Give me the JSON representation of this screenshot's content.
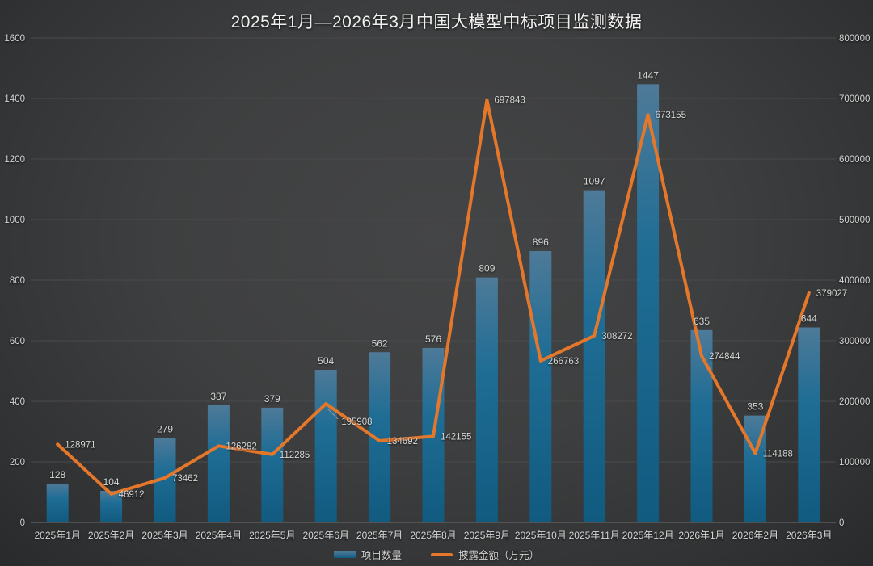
{
  "title": "2025年1月—2026年3月中国大模型中标项目监测数据",
  "legend": {
    "bar_label": "项目数量",
    "line_label": "披露金额（万元）"
  },
  "colors": {
    "background_center": "#434445",
    "background_edge": "#2a2b2c",
    "gridline": "#4a4a4b",
    "axis_line": "#6f6f6f",
    "label_text": "#d6d6d6",
    "title_text": "#f0f0f0",
    "bar_top": "#4e7a98",
    "bar_mid": "#1f6d95",
    "bar_bottom": "#115a80",
    "line_orange": "#e5772b",
    "leader_line": "#9a9a9a"
  },
  "chart_data": {
    "type": "bar",
    "combo": "bar+line dual axis",
    "title": "2025年1月—2026年3月中国大模型中标项目监测数据",
    "categories": [
      "2025年1月",
      "2025年2月",
      "2025年3月",
      "2025年4月",
      "2025年5月",
      "2025年6月",
      "2025年7月",
      "2025年8月",
      "2025年9月",
      "2025年10月",
      "2025年11月",
      "2025年12月",
      "2026年1月",
      "2026年2月",
      "2026年3月"
    ],
    "series": [
      {
        "name": "项目数量",
        "type": "bar",
        "axis": "left",
        "values": [
          128,
          104,
          279,
          387,
          379,
          504,
          562,
          576,
          809,
          896,
          1097,
          1447,
          635,
          353,
          644
        ]
      },
      {
        "name": "披露金额（万元）",
        "type": "line",
        "axis": "right",
        "values": [
          128971,
          46912,
          73462,
          126282,
          112285,
          195908,
          134692,
          142155,
          697843,
          266763,
          308272,
          673155,
          274844,
          114188,
          379027
        ]
      }
    ],
    "left_axis": {
      "min": 0,
      "max": 1600,
      "step": 200
    },
    "right_axis": {
      "min": 0,
      "max": 800000,
      "step": 100000
    },
    "grid": true,
    "data_labels": true,
    "label_callout_index": 5,
    "legend_position": "bottom"
  }
}
